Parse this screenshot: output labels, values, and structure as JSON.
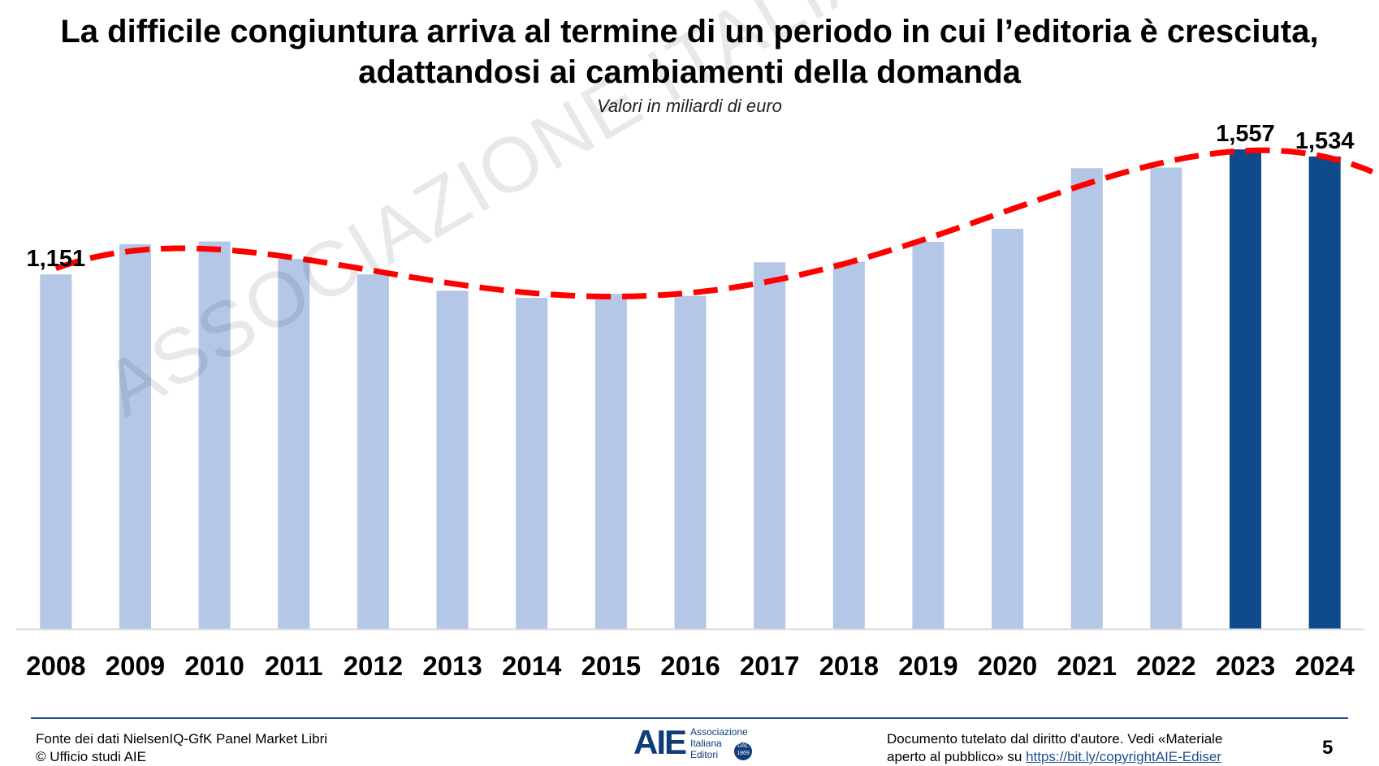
{
  "title": "La difficile congiuntura arriva al termine di un periodo in cui l’editoria è cresciuta, adattandosi ai cambiamenti della domanda",
  "subtitle": "Valori in miliardi di euro",
  "watermark": "ASSOCIAZIONE ITALIANA EDITORI",
  "chart_data": {
    "type": "bar",
    "title": "",
    "xlabel": "",
    "ylabel": "",
    "ylim": [
      0,
      1.66
    ],
    "grid": false,
    "categories": [
      "2008",
      "2009",
      "2010",
      "2011",
      "2012",
      "2013",
      "2014",
      "2015",
      "2016",
      "2017",
      "2018",
      "2019",
      "2020",
      "2021",
      "2022",
      "2023",
      "2024"
    ],
    "values": [
      1.151,
      1.249,
      1.258,
      1.201,
      1.151,
      1.098,
      1.075,
      1.088,
      1.081,
      1.19,
      1.192,
      1.257,
      1.299,
      1.496,
      1.498,
      1.557,
      1.534
    ],
    "highlighted": [
      "2023",
      "2024"
    ],
    "data_labels": [
      {
        "category": "2008",
        "text": "1,151"
      },
      {
        "category": "2023",
        "text": "1,557"
      },
      {
        "category": "2024",
        "text": "1,534"
      }
    ],
    "trendline": {
      "style": "dashed",
      "kind": "polynomial"
    },
    "colors": {
      "bar": "#b4c7e7",
      "bar_highlight": "#0f4a8a",
      "trend": "#ff0000",
      "axis": "#d9d9d9"
    }
  },
  "footer": {
    "source_line1": "Fonte dei dati NielsenIQ-GfK Panel Market Libri",
    "source_line2": "© Ufficio studi AIE",
    "copyright_line1": "Documento tutelato dal diritto d'autore. Vedi «Materiale",
    "copyright_line2_prefix": "aperto al pubblico» su ",
    "copyright_link": "https://bit.ly/copyrightAIE-Ediser",
    "page_number": "5"
  },
  "logo": {
    "mark": "AIE",
    "line1": "Associazione",
    "line2": "Italiana",
    "line3": "Editori",
    "badge": "DAL 1869"
  }
}
